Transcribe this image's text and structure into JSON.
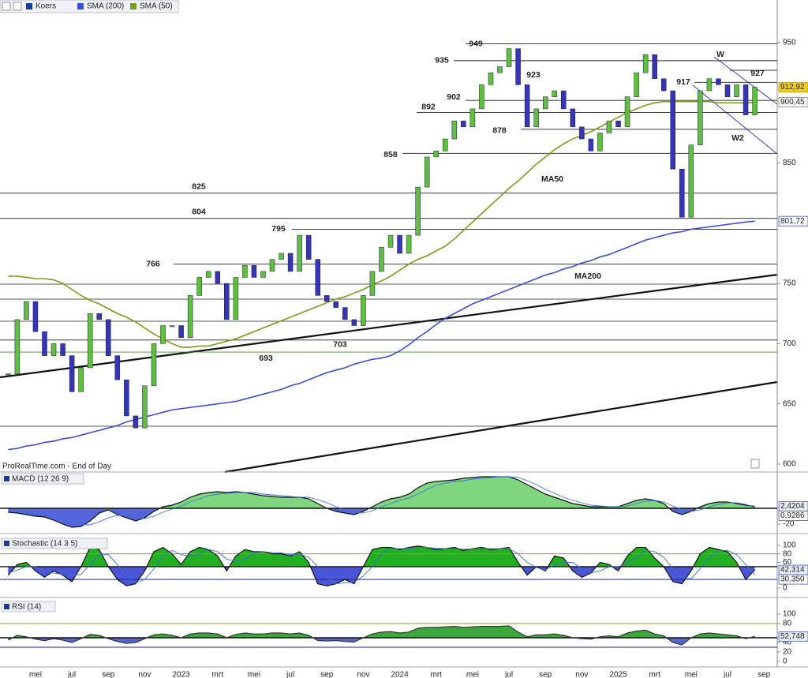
{
  "toolbar": {
    "items": [
      "Koers",
      "SMA (200)",
      "SMA (50)"
    ]
  },
  "chart_data": [
    {
      "type": "candlestick",
      "source": "ProRealTime.com - End of Day",
      "categories": [
        null,
        null,
        null,
        "mei",
        null,
        null,
        null,
        "jul",
        null,
        null,
        null,
        "sep",
        null,
        null,
        null,
        "nov",
        null,
        null,
        null,
        "2023",
        null,
        null,
        null,
        "mrt",
        null,
        null,
        null,
        "mei",
        null,
        null,
        null,
        "jul",
        null,
        null,
        null,
        "sep",
        null,
        null,
        null,
        "nov",
        null,
        null,
        null,
        "2024",
        null,
        null,
        null,
        "mrt",
        null,
        null,
        null,
        "mei",
        null,
        null,
        null,
        "jul",
        null,
        null,
        null,
        "sep",
        null,
        null,
        null,
        "nov",
        null,
        null,
        null,
        "2025",
        null,
        null,
        null,
        "mrt",
        null,
        null,
        null,
        "mei",
        null,
        null,
        null,
        "jul",
        null,
        null,
        null,
        "sep"
      ],
      "series": [
        {
          "name": "Koers",
          "color_up": "#5fbf3f",
          "color_down": "#3535b5",
          "tag_label": "912,92",
          "values": [
            675,
            720,
            735,
            710,
            690,
            700,
            690,
            660,
            680,
            725,
            720,
            690,
            670,
            640,
            630,
            665,
            700,
            715,
            715,
            705,
            740,
            755,
            760,
            750,
            720,
            755,
            765,
            755,
            760,
            770,
            775,
            760,
            790,
            770,
            740,
            735,
            730,
            720,
            715,
            740,
            760,
            780,
            790,
            775,
            790,
            830,
            855,
            860,
            870,
            885,
            880,
            895,
            915,
            925,
            930,
            945,
            915,
            880,
            895,
            905,
            910,
            895,
            880,
            870,
            860,
            875,
            885,
            880,
            905,
            925,
            940,
            920,
            910,
            845,
            805,
            865,
            910,
            920,
            915,
            905,
            915,
            890,
            912.92,
            null
          ]
        },
        {
          "name": "SMA (200)",
          "color": "#3b4fd8",
          "tag_label": "801,72",
          "values": [
            612,
            613,
            615,
            616,
            618,
            619,
            621,
            622,
            624,
            626,
            628,
            630,
            632,
            635,
            637,
            639,
            641,
            643,
            645,
            646,
            647,
            648,
            649,
            650,
            651,
            652,
            654,
            656,
            658,
            660,
            662,
            665,
            667,
            670,
            673,
            676,
            678,
            680,
            683,
            685,
            687,
            688,
            690,
            694,
            699,
            705,
            710,
            716,
            721,
            725,
            729,
            733,
            736,
            739,
            742,
            745,
            748,
            751,
            754,
            757,
            759,
            762,
            764,
            767,
            769,
            772,
            774,
            777,
            780,
            783,
            786,
            788,
            790,
            792,
            793,
            795,
            796,
            797,
            798,
            799,
            800,
            801,
            801.72,
            null
          ]
        },
        {
          "name": "SMA (50)",
          "color": "#7a9b1c",
          "tag_label": "900,45",
          "values": [
            756,
            756,
            755,
            754,
            754,
            753,
            750,
            745,
            740,
            736,
            733,
            729,
            725,
            722,
            718,
            713,
            708,
            704,
            700,
            697,
            697,
            698,
            698,
            700,
            702,
            704,
            707,
            710,
            713,
            716,
            719,
            722,
            725,
            728,
            731,
            734,
            737,
            739,
            742,
            745,
            749,
            752,
            756,
            761,
            766,
            770,
            773,
            777,
            781,
            787,
            794,
            801,
            808,
            815,
            822,
            829,
            835,
            842,
            849,
            855,
            861,
            866,
            870,
            873,
            876,
            880,
            884,
            888,
            892,
            895,
            898,
            900,
            901,
            901,
            901,
            901,
            901,
            901,
            900,
            900,
            900,
            900,
            900.45,
            null
          ]
        }
      ],
      "ylim": [
        593.4,
        985.4
      ],
      "yticks": [
        600,
        650,
        700,
        750,
        850,
        950
      ],
      "levels": [
        949,
        935,
        923,
        917,
        927,
        902,
        892,
        878,
        858,
        825,
        804,
        795,
        766,
        703,
        693
      ],
      "annotations": [
        "MA50",
        "MA200",
        "W",
        "W2"
      ]
    },
    {
      "type": "macd",
      "title": "MACD (12 26 9)",
      "series": [
        {
          "name": "MACD",
          "color": "#111111",
          "fill_up": "#7fd67f",
          "fill_down": "#5566dd",
          "tag_label": "2,4204",
          "values": [
            -5,
            -6,
            -8,
            -10,
            -11,
            -15,
            -20,
            -24,
            -23,
            -16,
            -6,
            -2,
            -8,
            -12,
            -16,
            -12,
            -4,
            2,
            4,
            8,
            14,
            18,
            20,
            21,
            20,
            21,
            20,
            18,
            16,
            15,
            14,
            14,
            14,
            12,
            6,
            0,
            -4,
            -6,
            -8,
            -4,
            2,
            8,
            12,
            14,
            18,
            26,
            32,
            34,
            35,
            36,
            38,
            39,
            40,
            40,
            40,
            40,
            36,
            30,
            24,
            18,
            14,
            10,
            6,
            4,
            2,
            2,
            2,
            2,
            6,
            10,
            12,
            10,
            6,
            -4,
            -8,
            -4,
            2,
            6,
            8,
            8,
            6,
            4,
            2.4204,
            null
          ]
        },
        {
          "name": "Signal",
          "color": "#3b6fd8",
          "tag_label": "0,9286",
          "values": [
            -3,
            -4,
            -5,
            -7,
            -8,
            -10,
            -13,
            -17,
            -20,
            -21,
            -17,
            -12,
            -9,
            -9,
            -11,
            -13,
            -10,
            -5,
            -1,
            3,
            8,
            12,
            16,
            18,
            19,
            20,
            20,
            20,
            18,
            17,
            16,
            15,
            14,
            14,
            11,
            7,
            2,
            -2,
            -5,
            -6,
            -3,
            2,
            6,
            10,
            13,
            18,
            24,
            29,
            32,
            34,
            35,
            37,
            38,
            39,
            40,
            40,
            39,
            35,
            30,
            24,
            19,
            14,
            10,
            7,
            4,
            3,
            2,
            2,
            3,
            6,
            9,
            10,
            8,
            3,
            -2,
            -4,
            -2,
            2,
            5,
            7,
            7,
            5,
            0.9286,
            null
          ]
        }
      ],
      "ylim": [
        -28,
        46
      ],
      "yticks": [
        -20
      ],
      "bands": [
        0
      ]
    },
    {
      "type": "stochastic",
      "title": "Stochastic (14 3 5)",
      "series": [
        {
          "name": "%K",
          "color": "#111111",
          "fill_up": "#22b022",
          "fill_down": "#4a55d8",
          "tag_label": "42,314",
          "values": [
            30,
            55,
            60,
            40,
            25,
            40,
            30,
            15,
            50,
            95,
            90,
            50,
            20,
            5,
            10,
            40,
            85,
            95,
            80,
            55,
            85,
            95,
            90,
            75,
            40,
            75,
            90,
            85,
            85,
            80,
            80,
            75,
            85,
            60,
            10,
            5,
            10,
            20,
            10,
            50,
            90,
            95,
            95,
            90,
            95,
            98,
            95,
            90,
            92,
            95,
            88,
            92,
            95,
            90,
            92,
            95,
            60,
            30,
            50,
            40,
            75,
            70,
            40,
            25,
            35,
            60,
            55,
            40,
            75,
            95,
            95,
            70,
            50,
            15,
            10,
            40,
            80,
            95,
            90,
            85,
            60,
            20,
            42.314,
            null
          ]
        },
        {
          "name": "%D",
          "color": "#3b6fd8",
          "tag_label": "30,350",
          "values": [
            35,
            42,
            50,
            50,
            40,
            35,
            32,
            28,
            32,
            55,
            78,
            78,
            55,
            25,
            12,
            20,
            45,
            75,
            88,
            78,
            75,
            80,
            90,
            85,
            68,
            62,
            68,
            82,
            85,
            83,
            82,
            78,
            80,
            72,
            50,
            25,
            10,
            12,
            14,
            28,
            50,
            80,
            92,
            92,
            93,
            95,
            95,
            93,
            92,
            92,
            91,
            91,
            92,
            92,
            92,
            92,
            80,
            60,
            48,
            42,
            55,
            60,
            60,
            45,
            35,
            40,
            50,
            50,
            58,
            72,
            88,
            85,
            72,
            45,
            25,
            22,
            45,
            72,
            88,
            88,
            78,
            55,
            30.35,
            null
          ]
        }
      ],
      "ylim": [
        -18.5,
        120
      ],
      "yticks": [
        0,
        60,
        80,
        100
      ],
      "bands": [
        20,
        50,
        80
      ]
    },
    {
      "type": "rsi",
      "title": "RSI (14)",
      "series": [
        {
          "name": "RSI",
          "color": "#333333",
          "fill_up": "#3aa83a",
          "fill_down": "#5566cc",
          "tag_label": "52,748",
          "values": [
            45,
            55,
            52,
            47,
            44,
            48,
            45,
            40,
            48,
            57,
            55,
            48,
            42,
            38,
            40,
            48,
            56,
            58,
            55,
            50,
            58,
            60,
            60,
            58,
            50,
            57,
            60,
            58,
            58,
            60,
            60,
            58,
            60,
            55,
            44,
            43,
            44,
            42,
            41,
            50,
            58,
            62,
            63,
            60,
            62,
            70,
            72,
            72,
            73,
            74,
            72,
            73,
            74,
            74,
            74,
            75,
            62,
            52,
            56,
            56,
            58,
            55,
            50,
            48,
            47,
            52,
            54,
            52,
            60,
            64,
            66,
            58,
            54,
            40,
            35,
            50,
            58,
            60,
            58,
            56,
            54,
            48,
            52.748,
            null
          ]
        }
      ],
      "ylim": [
        -11.7,
        130
      ],
      "yticks": [
        0,
        20,
        40,
        80,
        100
      ],
      "bands": [
        30,
        50,
        80
      ]
    }
  ]
}
